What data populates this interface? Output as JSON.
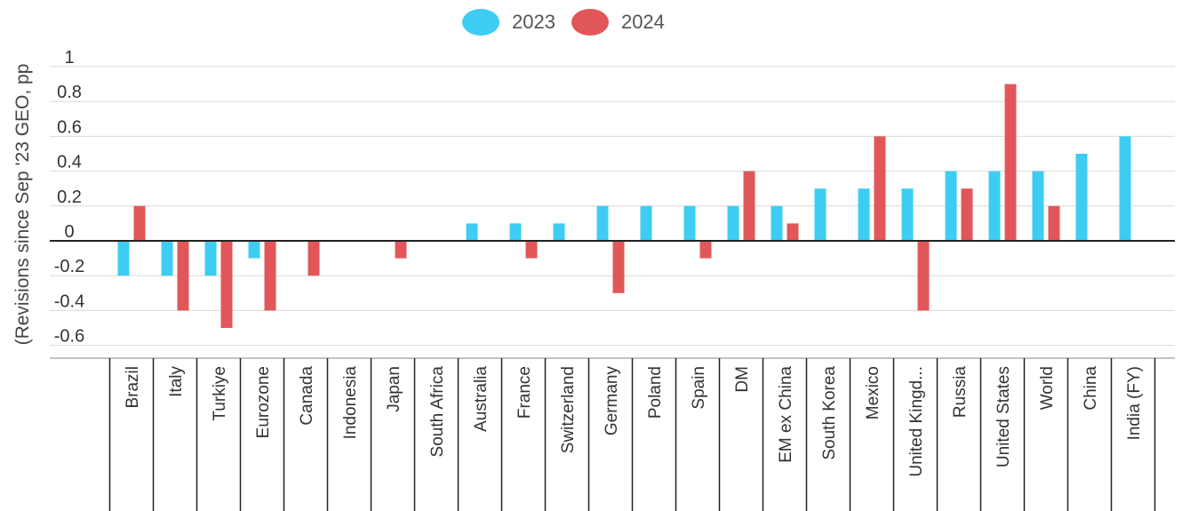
{
  "chart_data": {
    "type": "bar",
    "title": "",
    "xlabel": "",
    "ylabel": "(Revisions since Sep '23 GEO, pp",
    "ylim": [
      -0.65,
      1.0
    ],
    "y_ticks": [
      1,
      0.8,
      0.6,
      0.4,
      0.2,
      0,
      -0.2,
      -0.4,
      -0.6
    ],
    "y_tick_labels": [
      "1",
      "0.8",
      "0.6",
      "0.4",
      "0.2",
      "0",
      "-0.2",
      "-0.4",
      "-0.6"
    ],
    "grid": true,
    "legend_position": "top-center",
    "categories": [
      "Brazil",
      "Italy",
      "Turkiye",
      "Eurozone",
      "Canada",
      "Indonesia",
      "Japan",
      "South Africa",
      "Australia",
      "France",
      "Switzerland",
      "Germany",
      "Poland",
      "Spain",
      "DM",
      "EM ex China",
      "South Korea",
      "Mexico",
      "United Kingd...",
      "Russia",
      "United States",
      "World",
      "China",
      "India (FY)"
    ],
    "series": [
      {
        "name": "2023",
        "color": "#3ecdf2",
        "values": [
          -0.2,
          -0.2,
          -0.2,
          -0.1,
          null,
          null,
          null,
          null,
          0.1,
          0.1,
          0.1,
          0.2,
          0.2,
          0.2,
          0.2,
          0.2,
          0.3,
          0.3,
          0.3,
          0.4,
          0.4,
          0.4,
          0.5,
          0.6
        ]
      },
      {
        "name": "2024",
        "color": "#e15759",
        "values": [
          0.2,
          -0.4,
          -0.5,
          -0.4,
          -0.2,
          null,
          -0.1,
          null,
          null,
          -0.1,
          null,
          -0.3,
          null,
          -0.1,
          0.4,
          0.1,
          null,
          0.6,
          -0.4,
          0.3,
          0.9,
          0.2,
          null,
          null
        ]
      }
    ]
  }
}
